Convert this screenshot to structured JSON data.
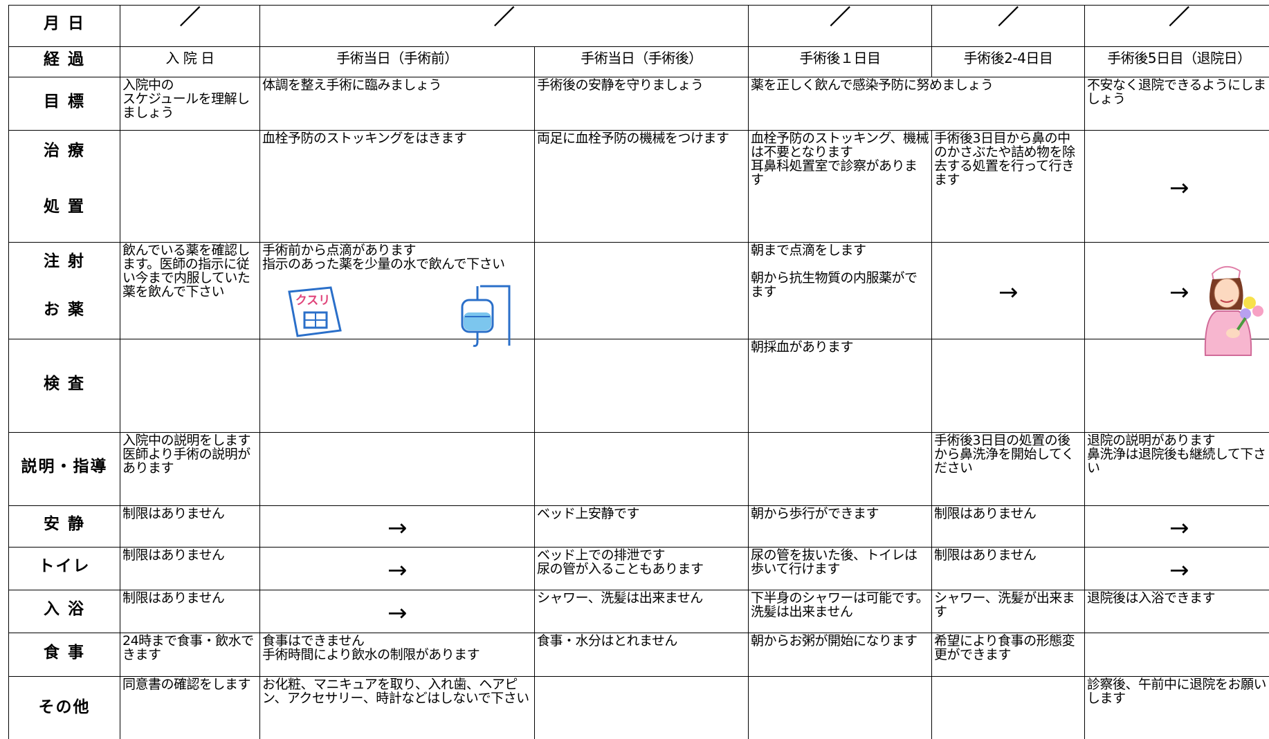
{
  "header": {
    "date_label": "月 日",
    "dates": [
      "／",
      "／",
      "／",
      "／",
      "／"
    ],
    "stage_label": "経 過",
    "stages": [
      "入 院 日",
      "手術当日（手術前）",
      "手術当日（手術後）",
      "手術後１日目",
      "手術後2-4日目",
      "手術後5日目（退院日）"
    ]
  },
  "rows": [
    {
      "label": [
        "目 標"
      ],
      "cells": [
        "入院中の\nスケジュールを理解しましょう",
        "体調を整え手術に臨みましょう",
        "手術後の安静を守りましょう",
        "薬を正しく飲んで感染予防に努めましょう",
        "不安なく退院できるようにしましょう"
      ]
    },
    {
      "label": [
        "治 療",
        "処 置"
      ],
      "cells": [
        "",
        "血栓予防のストッキングをはきます",
        "両足に血栓予防の機械をつけます",
        "血栓予防のストッキング、機械は不要となります\n耳鼻科処置室で診察があります",
        "手術後3日目から鼻の中のかさぶたや詰め物を除去する処置を行って行きます",
        "→"
      ]
    },
    {
      "label": [
        "注 射",
        "お 薬"
      ],
      "cells": [
        "飲んでいる薬を確認します。医師の指示に従い今まで内服していた薬を飲んで下さい",
        "手術前から点滴があります\n指示のあった薬を少量の水で飲んで下さい",
        "",
        "朝まで点滴をします\n\n朝から抗生物質の内服薬がでます",
        "→",
        "→"
      ]
    },
    {
      "label": [
        "検 査"
      ],
      "cells": [
        "",
        "",
        "",
        "朝採血があります",
        "",
        ""
      ]
    },
    {
      "label": [
        "説明・指導"
      ],
      "cells": [
        "入院中の説明をします\n医師より手術の説明があります",
        "",
        "",
        "",
        "手術後3日目の処置の後から鼻洗浄を開始してください",
        "退院の説明があります\n鼻洗浄は退院後も継続して下さい"
      ]
    },
    {
      "label": [
        "安 静"
      ],
      "cells": [
        "制限はありません",
        "→",
        "ベッド上安静です",
        "朝から歩行ができます",
        "制限はありません",
        "→"
      ]
    },
    {
      "label": [
        "トイレ"
      ],
      "cells": [
        "制限はありません",
        "→",
        "ベッド上での排泄です\n尿の管が入ることもあります",
        "尿の管を抜いた後、トイレは歩いて行けます",
        "制限はありません",
        "→"
      ]
    },
    {
      "label": [
        "入 浴"
      ],
      "cells": [
        "制限はありません",
        "→",
        "シャワー、洗髪は出来ません",
        "下半身のシャワーは可能です。洗髪は出来ません",
        "シャワー、洗髪が出来ます",
        "退院後は入浴できます"
      ]
    },
    {
      "label": [
        "食 事"
      ],
      "cells": [
        "24時まで食事・飲水できます",
        "食事はできません\n手術時間により飲水の制限があります",
        "食事・水分はとれません",
        "朝からお粥が開始になります",
        "希望により食事の形態変更ができます",
        ""
      ]
    },
    {
      "label": [
        "その他"
      ],
      "cells": [
        "同意書の確認をします",
        "お化粧、マニキュアを取り、入れ歯、ヘアピン、アクセサリー、時計などはしないで下さい",
        "",
        "",
        "",
        "診察後、午前中に退院をお願いします"
      ]
    }
  ],
  "icons": {
    "medicine": "クスリ"
  }
}
